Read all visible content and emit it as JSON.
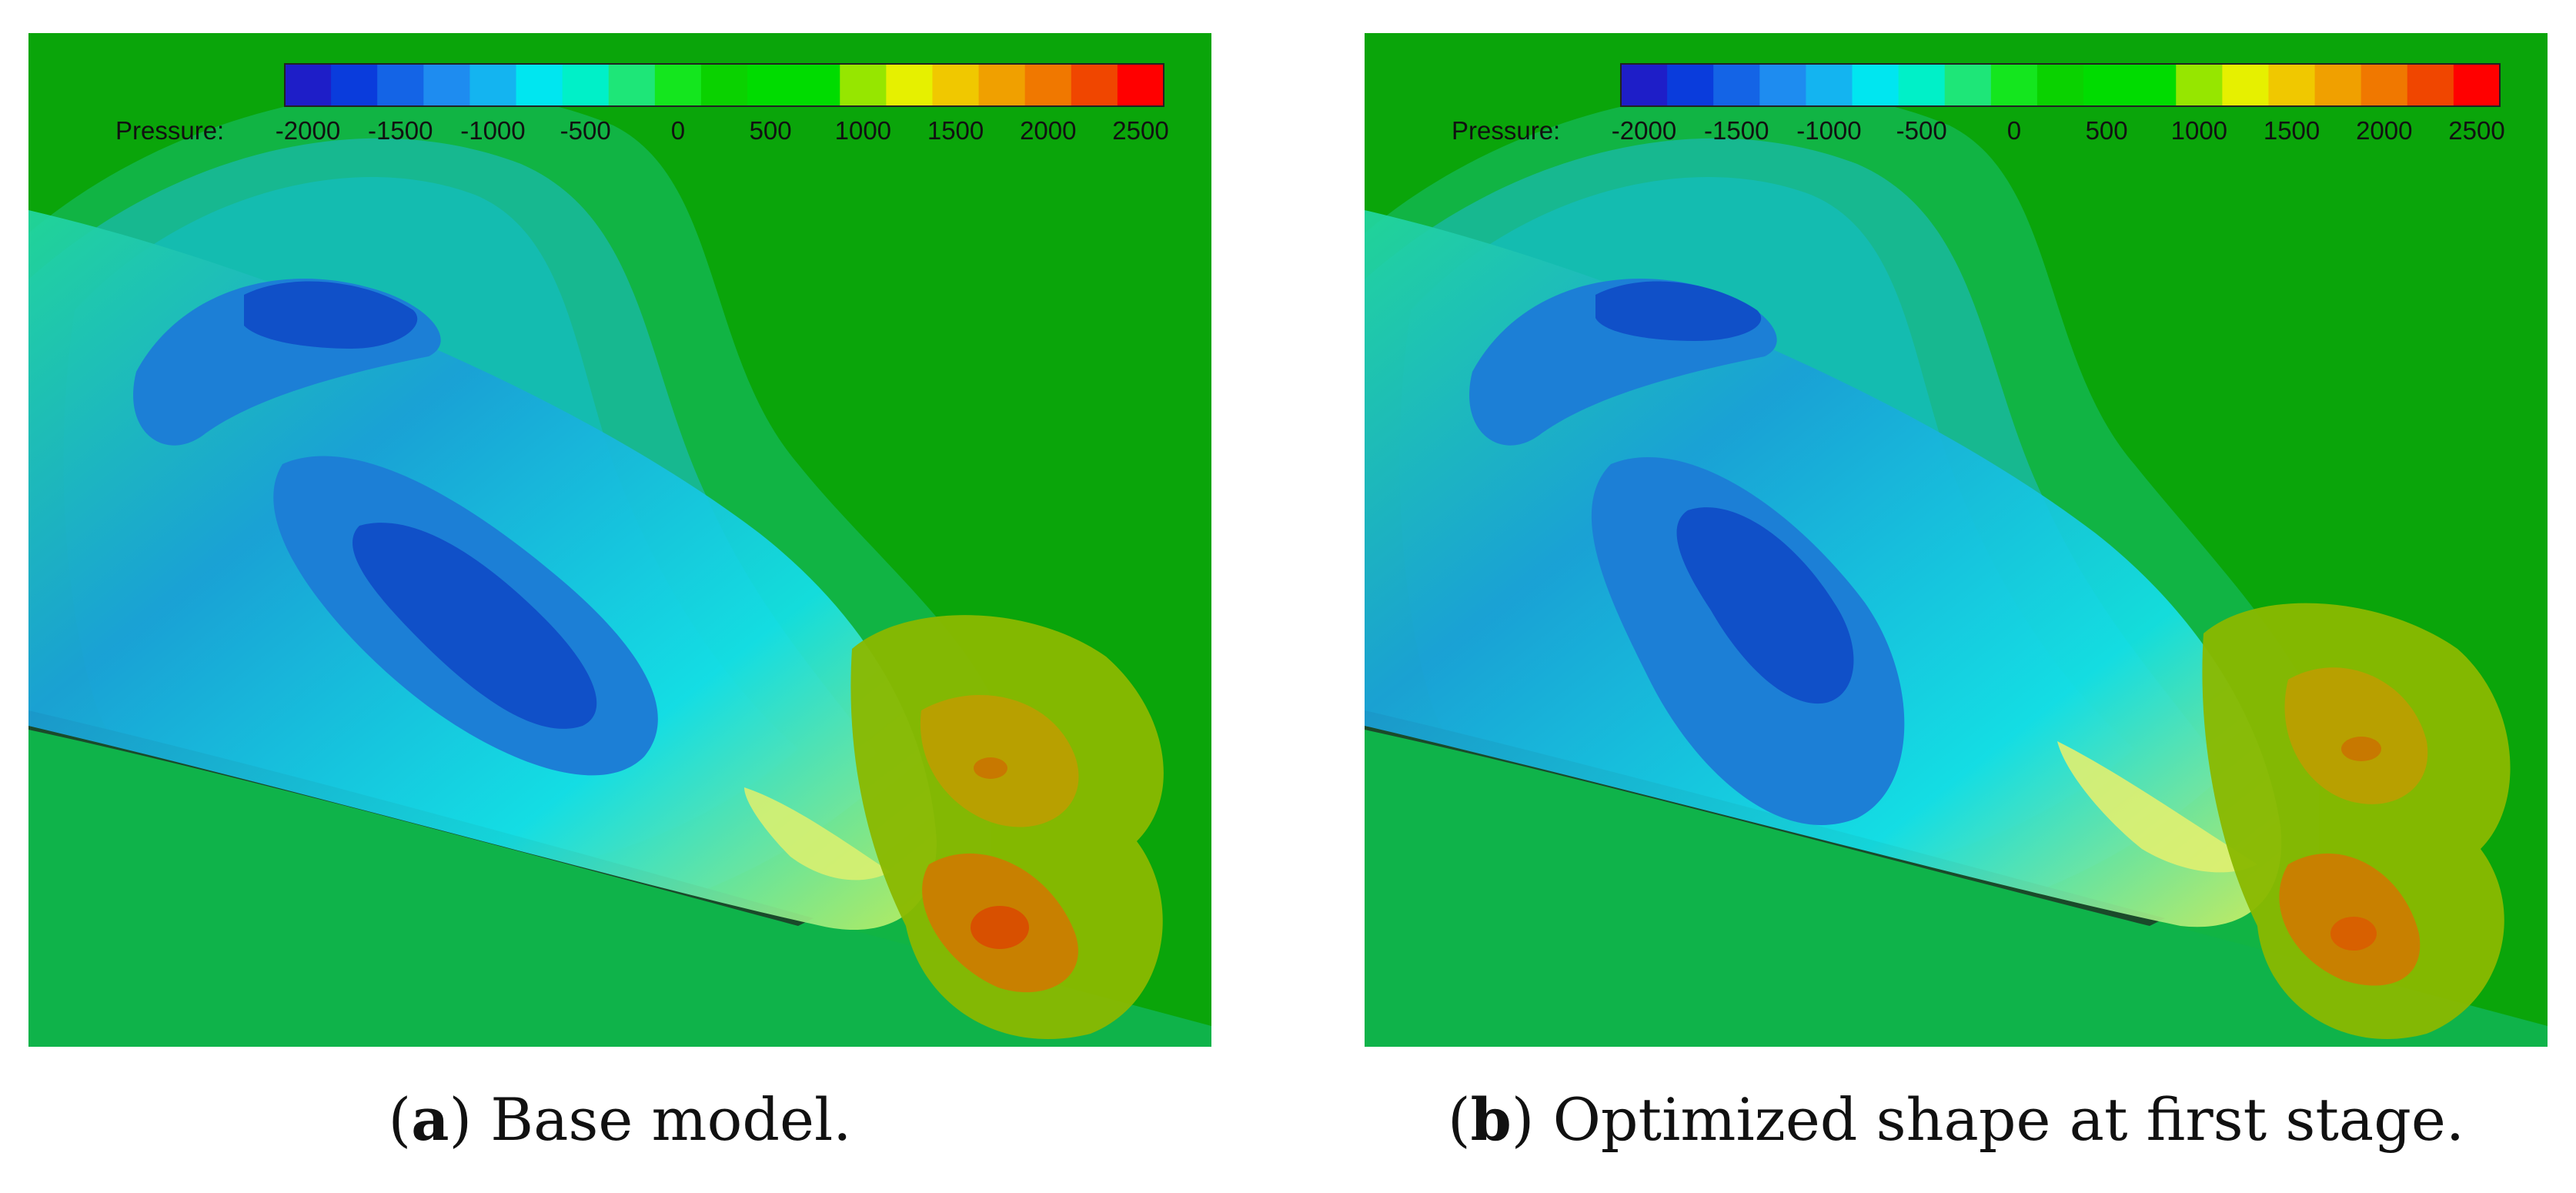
{
  "colorbar": {
    "label": "Pressure:",
    "ticks": [
      "-2000",
      "-1500",
      "-1000",
      "-500",
      "0",
      "500",
      "1000",
      "1500",
      "2000",
      "2500"
    ],
    "colors": [
      "#1e1ec8",
      "#0a3cdc",
      "#1464e6",
      "#1e8cf0",
      "#14b4f0",
      "#00e6f0",
      "#00f0c8",
      "#1ee678",
      "#14e61e",
      "#0ad200",
      "#00dc00",
      "#00dc00",
      "#96e600",
      "#e6f000",
      "#f0c800",
      "#f0a000",
      "#f07800",
      "#f04600",
      "#ff0000"
    ]
  },
  "panels": [
    {
      "id": "a",
      "label": "a",
      "caption": "Base model."
    },
    {
      "id": "b",
      "label": "b",
      "caption": "Optimized shape at first stage."
    }
  ],
  "palette": {
    "background": "#0ca40c",
    "field_green": "#12b022",
    "field_teal": "#0fb97a",
    "field_cyan": "#12c2b2",
    "field_lightblue": "#1ea8d8",
    "field_blue": "#1c7fd6",
    "field_darkblue": "#1050c8",
    "high_yellow": "#a8c800",
    "high_orange": "#d28a00",
    "high_red": "#d85800"
  }
}
